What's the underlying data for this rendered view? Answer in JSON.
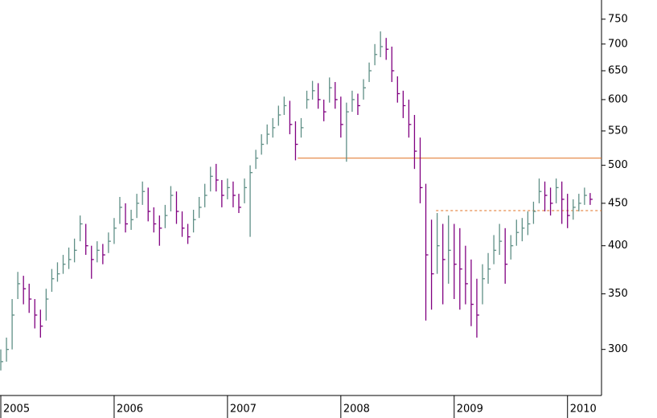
{
  "chart_data": {
    "type": "ohlc",
    "x": [
      2005.0,
      2005.05,
      2005.1,
      2005.15,
      2005.2,
      2005.25,
      2005.3,
      2005.35,
      2005.4,
      2005.45,
      2005.5,
      2005.55,
      2005.6,
      2005.65,
      2005.7,
      2005.75,
      2005.8,
      2005.85,
      2005.9,
      2005.95,
      2006.0,
      2006.05,
      2006.1,
      2006.15,
      2006.2,
      2006.25,
      2006.3,
      2006.35,
      2006.4,
      2006.45,
      2006.5,
      2006.55,
      2006.6,
      2006.65,
      2006.7,
      2006.75,
      2006.8,
      2006.85,
      2006.9,
      2006.95,
      2007.0,
      2007.05,
      2007.1,
      2007.15,
      2007.2,
      2007.25,
      2007.3,
      2007.35,
      2007.4,
      2007.45,
      2007.5,
      2007.55,
      2007.6,
      2007.65,
      2007.7,
      2007.75,
      2007.8,
      2007.85,
      2007.9,
      2007.95,
      2008.0,
      2008.05,
      2008.1,
      2008.15,
      2008.2,
      2008.25,
      2008.3,
      2008.35,
      2008.4,
      2008.45,
      2008.5,
      2008.55,
      2008.6,
      2008.65,
      2008.7,
      2008.75,
      2008.8,
      2008.85,
      2008.9,
      2008.95,
      2009.0,
      2009.05,
      2009.1,
      2009.15,
      2009.2,
      2009.25,
      2009.3,
      2009.35,
      2009.4,
      2009.45,
      2009.5,
      2009.55,
      2009.6,
      2009.65,
      2009.7,
      2009.75,
      2009.8,
      2009.85,
      2009.9,
      2009.95,
      2010.0,
      2010.05,
      2010.1,
      2010.15,
      2010.2
    ],
    "high": [
      300,
      310,
      345,
      372,
      368,
      360,
      345,
      335,
      355,
      375,
      382,
      390,
      398,
      408,
      435,
      425,
      400,
      405,
      402,
      415,
      432,
      458,
      450,
      442,
      462,
      478,
      470,
      445,
      435,
      448,
      472,
      465,
      440,
      425,
      442,
      458,
      475,
      498,
      502,
      480,
      482,
      478,
      462,
      482,
      500,
      522,
      545,
      560,
      570,
      590,
      605,
      598,
      565,
      570,
      615,
      632,
      628,
      600,
      638,
      630,
      605,
      595,
      615,
      610,
      635,
      665,
      700,
      725,
      712,
      695,
      640,
      615,
      600,
      575,
      540,
      475,
      430,
      438,
      425,
      435,
      425,
      420,
      400,
      385,
      365,
      380,
      392,
      412,
      425,
      420,
      412,
      430,
      432,
      440,
      452,
      482,
      478,
      470,
      482,
      478,
      462,
      455,
      462,
      470,
      463
    ],
    "low": [
      283,
      290,
      300,
      345,
      340,
      332,
      318,
      310,
      325,
      352,
      362,
      370,
      375,
      382,
      405,
      390,
      365,
      382,
      380,
      392,
      402,
      425,
      415,
      418,
      432,
      448,
      428,
      415,
      400,
      420,
      440,
      425,
      410,
      402,
      415,
      432,
      445,
      465,
      465,
      445,
      455,
      445,
      438,
      450,
      410,
      495,
      515,
      530,
      540,
      558,
      575,
      545,
      507,
      540,
      585,
      600,
      585,
      565,
      595,
      585,
      540,
      505,
      580,
      575,
      600,
      630,
      660,
      675,
      670,
      630,
      595,
      570,
      540,
      495,
      450,
      325,
      335,
      370,
      340,
      360,
      345,
      335,
      340,
      320,
      310,
      340,
      360,
      380,
      390,
      360,
      385,
      400,
      405,
      412,
      425,
      450,
      440,
      435,
      450,
      425,
      420,
      430,
      440,
      448,
      448
    ],
    "close": [
      290,
      300,
      330,
      360,
      355,
      345,
      330,
      320,
      345,
      365,
      370,
      380,
      385,
      395,
      425,
      400,
      385,
      395,
      390,
      405,
      420,
      445,
      425,
      430,
      450,
      465,
      440,
      425,
      420,
      435,
      460,
      440,
      420,
      410,
      430,
      445,
      460,
      485,
      480,
      460,
      470,
      460,
      445,
      470,
      490,
      510,
      530,
      545,
      555,
      575,
      590,
      560,
      530,
      555,
      600,
      615,
      600,
      580,
      620,
      600,
      560,
      580,
      600,
      590,
      620,
      650,
      680,
      695,
      690,
      650,
      610,
      590,
      560,
      520,
      470,
      390,
      370,
      400,
      385,
      395,
      380,
      375,
      360,
      340,
      330,
      365,
      375,
      395,
      405,
      380,
      400,
      415,
      420,
      425,
      440,
      465,
      460,
      450,
      470,
      455,
      435,
      445,
      450,
      460,
      455
    ],
    "up_color": "#5f8f86",
    "down_color": "#800080",
    "log_scale": true,
    "xlim": [
      2005,
      2010.3
    ],
    "xticks": [
      2005,
      2006,
      2007,
      2008,
      2009,
      2010
    ],
    "ylim": [
      264,
      791
    ],
    "yticks": [
      300,
      350,
      400,
      450,
      500,
      550,
      600,
      650,
      700,
      750
    ],
    "levels": [
      {
        "value": 510,
        "from": 2007.62,
        "color": "#e07020",
        "style": "solid"
      },
      {
        "value": 441,
        "from": 2008.84,
        "color": "#e07020",
        "style": "dashed"
      }
    ]
  }
}
